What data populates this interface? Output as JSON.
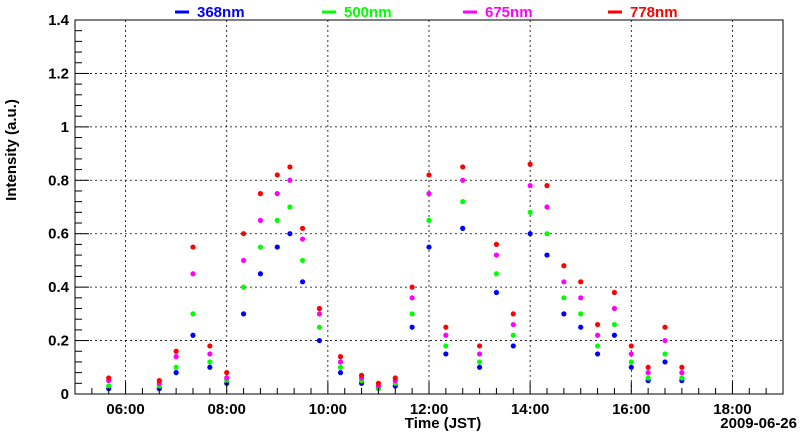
{
  "chart_data": {
    "type": "scatter",
    "xlabel": "Time (JST)",
    "ylabel": "Intensity (a.u.)",
    "date_label": "2009-06-26",
    "xlim": [
      "05:00",
      "19:00"
    ],
    "ylim": [
      0,
      1.4
    ],
    "x_tick_labels": [
      "06:00",
      "08:00",
      "10:00",
      "12:00",
      "14:00",
      "16:00",
      "18:00"
    ],
    "y_tick_labels": [
      "0",
      "0.2",
      "0.4",
      "0.6",
      "0.8",
      "1",
      "1.2",
      "1.4"
    ],
    "grid": true,
    "legend_position": "top",
    "series": [
      {
        "name": "368nm",
        "color": "#0000ff",
        "x": [
          "05:40",
          "06:40",
          "07:00",
          "07:20",
          "07:40",
          "08:00",
          "08:20",
          "08:40",
          "09:00",
          "09:15",
          "09:30",
          "09:50",
          "10:15",
          "10:40",
          "11:00",
          "11:20",
          "11:40",
          "12:00",
          "12:20",
          "12:40",
          "13:00",
          "13:20",
          "13:40",
          "14:00",
          "14:20",
          "14:40",
          "15:00",
          "15:20",
          "15:40",
          "16:00",
          "16:20",
          "16:40",
          "17:00"
        ],
        "y": [
          0.02,
          0.02,
          0.08,
          0.22,
          0.1,
          0.04,
          0.3,
          0.45,
          0.55,
          0.6,
          0.42,
          0.2,
          0.08,
          0.04,
          0.02,
          0.03,
          0.25,
          0.55,
          0.15,
          0.62,
          0.1,
          0.38,
          0.18,
          0.6,
          0.52,
          0.3,
          0.25,
          0.15,
          0.22,
          0.1,
          0.05,
          0.12,
          0.05
        ]
      },
      {
        "name": "500nm",
        "color": "#00ff00",
        "x": [
          "05:40",
          "06:40",
          "07:00",
          "07:20",
          "07:40",
          "08:00",
          "08:20",
          "08:40",
          "09:00",
          "09:15",
          "09:30",
          "09:50",
          "10:15",
          "10:40",
          "11:00",
          "11:20",
          "11:40",
          "12:00",
          "12:20",
          "12:40",
          "13:00",
          "13:20",
          "13:40",
          "14:00",
          "14:20",
          "14:40",
          "15:00",
          "15:20",
          "15:40",
          "16:00",
          "16:20",
          "16:40",
          "17:00"
        ],
        "y": [
          0.03,
          0.03,
          0.1,
          0.3,
          0.12,
          0.05,
          0.4,
          0.55,
          0.65,
          0.7,
          0.5,
          0.25,
          0.1,
          0.05,
          0.02,
          0.04,
          0.3,
          0.65,
          0.18,
          0.72,
          0.12,
          0.45,
          0.22,
          0.68,
          0.6,
          0.36,
          0.3,
          0.18,
          0.26,
          0.12,
          0.06,
          0.15,
          0.06
        ]
      },
      {
        "name": "675nm",
        "color": "#ff00ff",
        "x": [
          "05:40",
          "06:40",
          "07:00",
          "07:20",
          "07:40",
          "08:00",
          "08:20",
          "08:40",
          "09:00",
          "09:15",
          "09:30",
          "09:50",
          "10:15",
          "10:40",
          "11:00",
          "11:20",
          "11:40",
          "12:00",
          "12:20",
          "12:40",
          "13:00",
          "13:20",
          "13:40",
          "14:00",
          "14:20",
          "14:40",
          "15:00",
          "15:20",
          "15:40",
          "16:00",
          "16:20",
          "16:40",
          "17:00"
        ],
        "y": [
          0.05,
          0.04,
          0.14,
          0.45,
          0.15,
          0.06,
          0.5,
          0.65,
          0.75,
          0.8,
          0.58,
          0.3,
          0.12,
          0.06,
          0.03,
          0.05,
          0.36,
          0.75,
          0.22,
          0.8,
          0.15,
          0.52,
          0.26,
          0.78,
          0.7,
          0.42,
          0.36,
          0.22,
          0.32,
          0.15,
          0.08,
          0.2,
          0.08
        ]
      },
      {
        "name": "778nm",
        "color": "#ff0000",
        "x": [
          "05:40",
          "06:40",
          "07:00",
          "07:20",
          "07:40",
          "08:00",
          "08:20",
          "08:40",
          "09:00",
          "09:15",
          "09:30",
          "09:50",
          "10:15",
          "10:40",
          "11:00",
          "11:20",
          "11:40",
          "12:00",
          "12:20",
          "12:40",
          "13:00",
          "13:20",
          "13:40",
          "14:00",
          "14:20",
          "14:40",
          "15:00",
          "15:20",
          "15:40",
          "16:00",
          "16:20",
          "16:40",
          "17:00"
        ],
        "y": [
          0.06,
          0.05,
          0.16,
          0.55,
          0.18,
          0.08,
          0.6,
          0.75,
          0.82,
          0.85,
          0.62,
          0.32,
          0.14,
          0.07,
          0.04,
          0.06,
          0.4,
          0.82,
          0.25,
          0.85,
          0.18,
          0.56,
          0.3,
          0.86,
          0.78,
          0.48,
          0.42,
          0.26,
          0.38,
          0.18,
          0.1,
          0.25,
          0.1
        ]
      }
    ]
  }
}
